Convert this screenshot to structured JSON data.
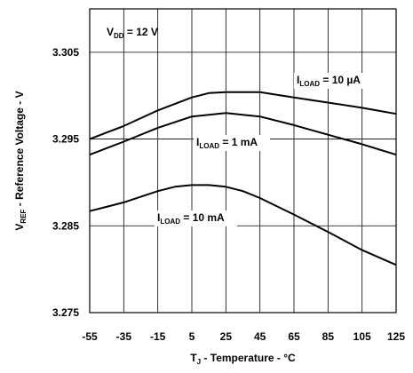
{
  "chart_data": {
    "type": "line",
    "xlabel": {
      "main": "T",
      "sub": "J",
      "rest": " - Temperature - °C"
    },
    "ylabel": {
      "main": "V",
      "sub": "REF",
      "rest": " - Reference Voltage - V"
    },
    "xlim": [
      -55,
      125
    ],
    "ylim": [
      3.275,
      3.31
    ],
    "x_ticks": [
      -55,
      -35,
      -15,
      5,
      25,
      45,
      65,
      85,
      105,
      125
    ],
    "x_tick_labels": [
      "-55",
      "-35",
      "-15",
      "5",
      "25",
      "45",
      "65",
      "85",
      "105",
      "125"
    ],
    "y_ticks": [
      3.275,
      3.285,
      3.295,
      3.305
    ],
    "y_tick_labels": [
      "3.275",
      "3.285",
      "3.295",
      "3.305"
    ],
    "grid": true,
    "annotations": {
      "vdd": {
        "main": "V",
        "sub": "DD",
        "rest": " = 12 V"
      }
    },
    "series": [
      {
        "name": {
          "main": "I",
          "sub": "LOAD",
          "rest": " = 10 µA"
        },
        "x": [
          -55,
          -35,
          -15,
          5,
          15,
          25,
          45,
          65,
          85,
          105,
          125
        ],
        "y": [
          3.295,
          3.2965,
          3.2983,
          3.2998,
          3.3003,
          3.3004,
          3.3004,
          3.2998,
          3.2992,
          3.2986,
          3.2979
        ]
      },
      {
        "name": {
          "main": "I",
          "sub": "LOAD",
          "rest": " = 1 mA"
        },
        "x": [
          -55,
          -35,
          -15,
          5,
          25,
          45,
          65,
          85,
          105,
          125
        ],
        "y": [
          3.2932,
          3.2947,
          3.2963,
          3.2976,
          3.298,
          3.2976,
          3.2966,
          3.2955,
          3.2944,
          3.2932
        ]
      },
      {
        "name": {
          "main": "I",
          "sub": "LOAD",
          "rest": " = 10 mA"
        },
        "x": [
          -55,
          -35,
          -15,
          -5,
          5,
          15,
          25,
          35,
          45,
          65,
          85,
          105,
          125
        ],
        "y": [
          3.2867,
          3.2877,
          3.289,
          3.2895,
          3.2897,
          3.2897,
          3.2895,
          3.289,
          3.2882,
          3.2863,
          3.2843,
          3.2822,
          3.2805
        ]
      }
    ]
  }
}
